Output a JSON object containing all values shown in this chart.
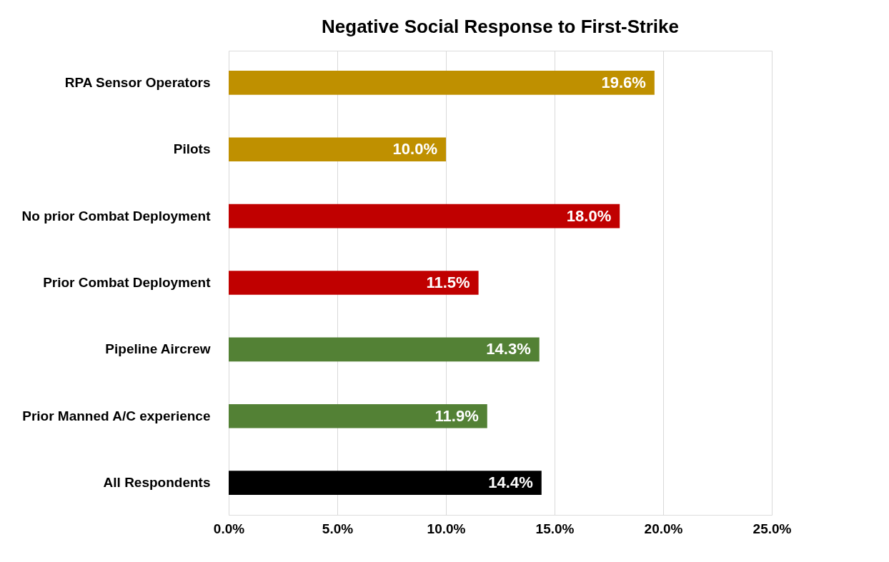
{
  "chart_data": {
    "type": "bar",
    "orientation": "horizontal",
    "title": "Negative Social Response to First-Strike",
    "categories": [
      "RPA Sensor Operators",
      "Pilots",
      "No prior Combat Deployment",
      "Prior Combat Deployment",
      "Pipeline Aircrew",
      "Prior Manned A/C experience",
      "All Respondents"
    ],
    "values": [
      19.6,
      10.0,
      18.0,
      11.5,
      14.3,
      11.9,
      14.4
    ],
    "colors": [
      "#bf9000",
      "#bf9000",
      "#c00000",
      "#c00000",
      "#538135",
      "#538135",
      "#000000"
    ],
    "value_labels": [
      "19.6%",
      "10.0%",
      "18.0%",
      "11.5%",
      "14.3%",
      "11.9%",
      "14.4%"
    ],
    "xlim": [
      0,
      25
    ],
    "xticks": [
      {
        "value": 0,
        "label": "0.0%"
      },
      {
        "value": 5,
        "label": "5.0%"
      },
      {
        "value": 10,
        "label": "10.0%"
      },
      {
        "value": 15,
        "label": "15.0%"
      },
      {
        "value": 20,
        "label": "20.0%"
      },
      {
        "value": 25,
        "label": "25.0%"
      }
    ],
    "grid": "x"
  }
}
